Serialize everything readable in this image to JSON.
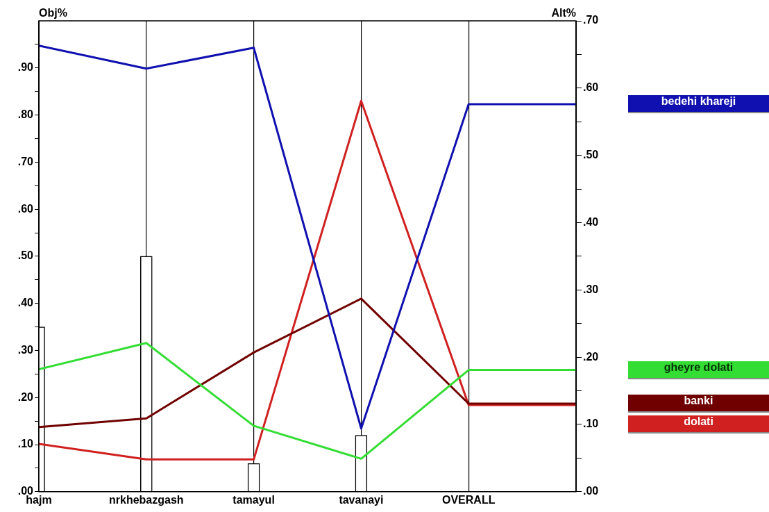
{
  "chart_data": {
    "type": "line",
    "ylabel": "Obj%",
    "y2label": "Alt%",
    "categories": [
      "hajm",
      "nrkhebazgash",
      "tamayul",
      "tavanayi",
      "OVERALL",
      null
    ],
    "ylim": [
      0,
      1
    ],
    "yticks": [
      {
        "value": 0,
        "label": ".00"
      },
      {
        "value": 0.05,
        "label": null
      },
      {
        "value": 0.1,
        "label": ".10"
      },
      {
        "value": 0.15,
        "label": null
      },
      {
        "value": 0.2,
        "label": ".20"
      },
      {
        "value": 0.25,
        "label": null
      },
      {
        "value": 0.3,
        "label": ".30"
      },
      {
        "value": 0.35,
        "label": null
      },
      {
        "value": 0.4,
        "label": ".40"
      },
      {
        "value": 0.45,
        "label": null
      },
      {
        "value": 0.5,
        "label": ".50"
      },
      {
        "value": 0.55,
        "label": null
      },
      {
        "value": 0.6,
        "label": ".60"
      },
      {
        "value": 0.65,
        "label": null
      },
      {
        "value": 0.7,
        "label": ".70"
      },
      {
        "value": 0.75,
        "label": null
      },
      {
        "value": 0.8,
        "label": ".80"
      },
      {
        "value": 0.85,
        "label": null
      },
      {
        "value": 0.9,
        "label": ".90"
      },
      {
        "value": 0.95,
        "label": null
      }
    ],
    "y2lim": [
      0,
      0.7
    ],
    "y2ticks": [
      {
        "value": 0,
        "label": ".00"
      },
      {
        "value": 0.05,
        "label": null
      },
      {
        "value": 0.1,
        "label": ".10"
      },
      {
        "value": 0.15,
        "label": null
      },
      {
        "value": 0.2,
        "label": ".20"
      },
      {
        "value": 0.25,
        "label": null
      },
      {
        "value": 0.3,
        "label": ".30"
      },
      {
        "value": 0.35,
        "label": null
      },
      {
        "value": 0.4,
        "label": ".40"
      },
      {
        "value": 0.45,
        "label": null
      },
      {
        "value": 0.5,
        "label": ".50"
      },
      {
        "value": 0.55,
        "label": null
      },
      {
        "value": 0.6,
        "label": ".60"
      },
      {
        "value": 0.65,
        "label": null
      },
      {
        "value": 0.7,
        "label": ".70"
      }
    ],
    "grid": "x",
    "legend": "right",
    "marker": "none",
    "series": [
      {
        "type": "bar",
        "color": "#ffffff",
        "values": [
          0.35,
          0.5,
          0.06,
          0.12,
          null,
          null
        ]
      },
      {
        "name": "bedehi khareji",
        "color": "#1010b0",
        "axis": "y2",
        "values": [
          0.663,
          0.629,
          0.66,
          0.094,
          0.576,
          0.576
        ]
      },
      {
        "name": "gheyre dolati",
        "color": "#33dd33",
        "axis": "y2",
        "values": [
          0.182,
          0.221,
          0.098,
          0.049,
          0.181,
          0.181
        ]
      },
      {
        "name": "banki",
        "color": "#700000",
        "axis": "y2",
        "values": [
          0.096,
          0.109,
          0.207,
          0.287,
          0.131,
          0.131
        ]
      },
      {
        "name": "dolati",
        "color": "#d02020",
        "axis": "y2",
        "values": [
          0.071,
          0.048,
          0.048,
          0.581,
          0.129,
          0.129
        ]
      }
    ]
  }
}
